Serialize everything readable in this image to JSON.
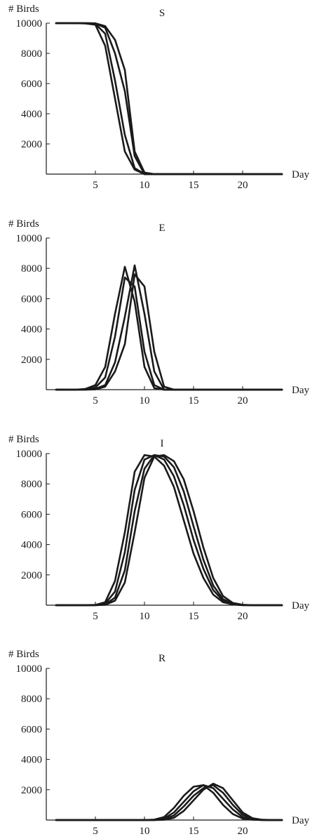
{
  "chart_data": [
    {
      "type": "line",
      "title": "S",
      "ylabel": "# Birds",
      "xlabel": "Day",
      "xlim": [
        0,
        24
      ],
      "ylim": [
        0,
        10000
      ],
      "xticks": [
        5,
        10,
        15,
        20
      ],
      "yticks": [
        2000,
        4000,
        6000,
        8000,
        10000
      ],
      "grid": false,
      "x": [
        1,
        2,
        3,
        4,
        5,
        6,
        7,
        8,
        9,
        10,
        11,
        12,
        13,
        14,
        15,
        16,
        17,
        18,
        19,
        20,
        21,
        22,
        23,
        24
      ],
      "series": [
        {
          "values": [
            10000,
            10000,
            10000,
            9980,
            9900,
            8500,
            5000,
            1500,
            300,
            0,
            0,
            0,
            0,
            0,
            0,
            0,
            0,
            0,
            0,
            0,
            0,
            0,
            0,
            0
          ]
        },
        {
          "values": [
            10000,
            10000,
            10000,
            9990,
            9950,
            9300,
            6200,
            2600,
            400,
            0,
            0,
            0,
            0,
            0,
            0,
            0,
            0,
            0,
            0,
            0,
            0,
            0,
            0,
            0
          ]
        },
        {
          "values": [
            10000,
            10000,
            10000,
            10000,
            9980,
            9700,
            8000,
            5500,
            1200,
            0,
            0,
            0,
            0,
            0,
            0,
            0,
            0,
            0,
            0,
            0,
            0,
            0,
            0,
            0
          ]
        },
        {
          "values": [
            10000,
            10000,
            10000,
            10000,
            9990,
            9800,
            8900,
            6900,
            1500,
            100,
            0,
            0,
            0,
            0,
            0,
            0,
            0,
            0,
            0,
            0,
            0,
            0,
            0,
            0
          ]
        }
      ]
    },
    {
      "type": "line",
      "title": "E",
      "ylabel": "# Birds",
      "xlabel": "Day",
      "xlim": [
        0,
        24
      ],
      "ylim": [
        0,
        10000
      ],
      "xticks": [
        5,
        10,
        15,
        20
      ],
      "yticks": [
        2000,
        4000,
        6000,
        8000,
        10000
      ],
      "grid": false,
      "x": [
        1,
        2,
        3,
        4,
        5,
        6,
        7,
        8,
        9,
        10,
        11,
        12,
        13,
        14,
        15,
        16,
        17,
        18,
        19,
        20,
        21,
        22,
        23,
        24
      ],
      "series": [
        {
          "values": [
            0,
            0,
            0,
            50,
            300,
            1500,
            5000,
            8100,
            5800,
            1500,
            100,
            0,
            0,
            0,
            0,
            0,
            0,
            0,
            0,
            0,
            0,
            0,
            0,
            0
          ]
        },
        {
          "values": [
            0,
            0,
            0,
            20,
            150,
            800,
            3500,
            7400,
            6800,
            2500,
            300,
            0,
            0,
            0,
            0,
            0,
            0,
            0,
            0,
            0,
            0,
            0,
            0,
            0
          ]
        },
        {
          "values": [
            0,
            0,
            0,
            0,
            50,
            300,
            1800,
            4800,
            8200,
            5000,
            1200,
            0,
            0,
            0,
            0,
            0,
            0,
            0,
            0,
            0,
            0,
            0,
            0,
            0
          ]
        },
        {
          "values": [
            0,
            0,
            0,
            0,
            20,
            200,
            1200,
            3000,
            7600,
            6800,
            2500,
            200,
            0,
            0,
            0,
            0,
            0,
            0,
            0,
            0,
            0,
            0,
            0,
            0
          ]
        }
      ]
    },
    {
      "type": "line",
      "title": "I",
      "ylabel": "# Birds",
      "xlabel": "Day",
      "xlim": [
        0,
        24
      ],
      "ylim": [
        0,
        10000
      ],
      "xticks": [
        5,
        10,
        15,
        20
      ],
      "yticks": [
        2000,
        4000,
        6000,
        8000,
        10000
      ],
      "grid": false,
      "x": [
        1,
        2,
        3,
        4,
        5,
        6,
        7,
        8,
        9,
        10,
        11,
        12,
        13,
        14,
        15,
        16,
        17,
        18,
        19,
        20,
        21,
        22,
        23,
        24
      ],
      "series": [
        {
          "values": [
            0,
            0,
            0,
            0,
            20,
            200,
            1600,
            4800,
            8800,
            9900,
            9800,
            9200,
            7800,
            5600,
            3400,
            1800,
            700,
            200,
            50,
            0,
            0,
            0,
            0,
            0
          ]
        },
        {
          "values": [
            0,
            0,
            0,
            0,
            10,
            100,
            900,
            3500,
            7600,
            9600,
            9900,
            9600,
            8500,
            6600,
            4300,
            2400,
            1000,
            300,
            80,
            10,
            0,
            0,
            0,
            0
          ]
        },
        {
          "values": [
            0,
            0,
            0,
            0,
            0,
            50,
            500,
            2300,
            6200,
            9000,
            9900,
            9800,
            9100,
            7500,
            5200,
            3000,
            1300,
            400,
            100,
            20,
            0,
            0,
            0,
            0
          ]
        },
        {
          "values": [
            0,
            0,
            0,
            0,
            0,
            30,
            300,
            1500,
            4800,
            8400,
            9800,
            9900,
            9500,
            8300,
            6200,
            3800,
            1800,
            600,
            150,
            30,
            0,
            0,
            0,
            0
          ]
        }
      ]
    },
    {
      "type": "line",
      "title": "R",
      "ylabel": "# Birds",
      "xlabel": "Day",
      "xlim": [
        0,
        24
      ],
      "ylim": [
        0,
        10000
      ],
      "xticks": [
        5,
        10,
        15,
        20
      ],
      "yticks": [
        2000,
        4000,
        6000,
        8000,
        10000
      ],
      "grid": false,
      "x": [
        1,
        2,
        3,
        4,
        5,
        6,
        7,
        8,
        9,
        10,
        11,
        12,
        13,
        14,
        15,
        16,
        17,
        18,
        19,
        20,
        21,
        22,
        23,
        24
      ],
      "series": [
        {
          "values": [
            0,
            0,
            0,
            0,
            0,
            0,
            0,
            0,
            0,
            0,
            30,
            200,
            800,
            1600,
            2200,
            2300,
            1800,
            1000,
            400,
            100,
            20,
            0,
            0,
            0
          ]
        },
        {
          "values": [
            0,
            0,
            0,
            0,
            0,
            0,
            0,
            0,
            0,
            0,
            10,
            100,
            500,
            1200,
            1900,
            2300,
            2100,
            1400,
            700,
            200,
            40,
            0,
            0,
            0
          ]
        },
        {
          "values": [
            0,
            0,
            0,
            0,
            0,
            0,
            0,
            0,
            0,
            0,
            0,
            50,
            300,
            900,
            1600,
            2100,
            2300,
            1800,
            1000,
            350,
            80,
            10,
            0,
            0
          ]
        },
        {
          "values": [
            0,
            0,
            0,
            0,
            0,
            0,
            0,
            0,
            0,
            0,
            0,
            20,
            150,
            600,
            1300,
            2000,
            2400,
            2100,
            1300,
            500,
            120,
            20,
            0,
            0
          ]
        }
      ]
    }
  ]
}
